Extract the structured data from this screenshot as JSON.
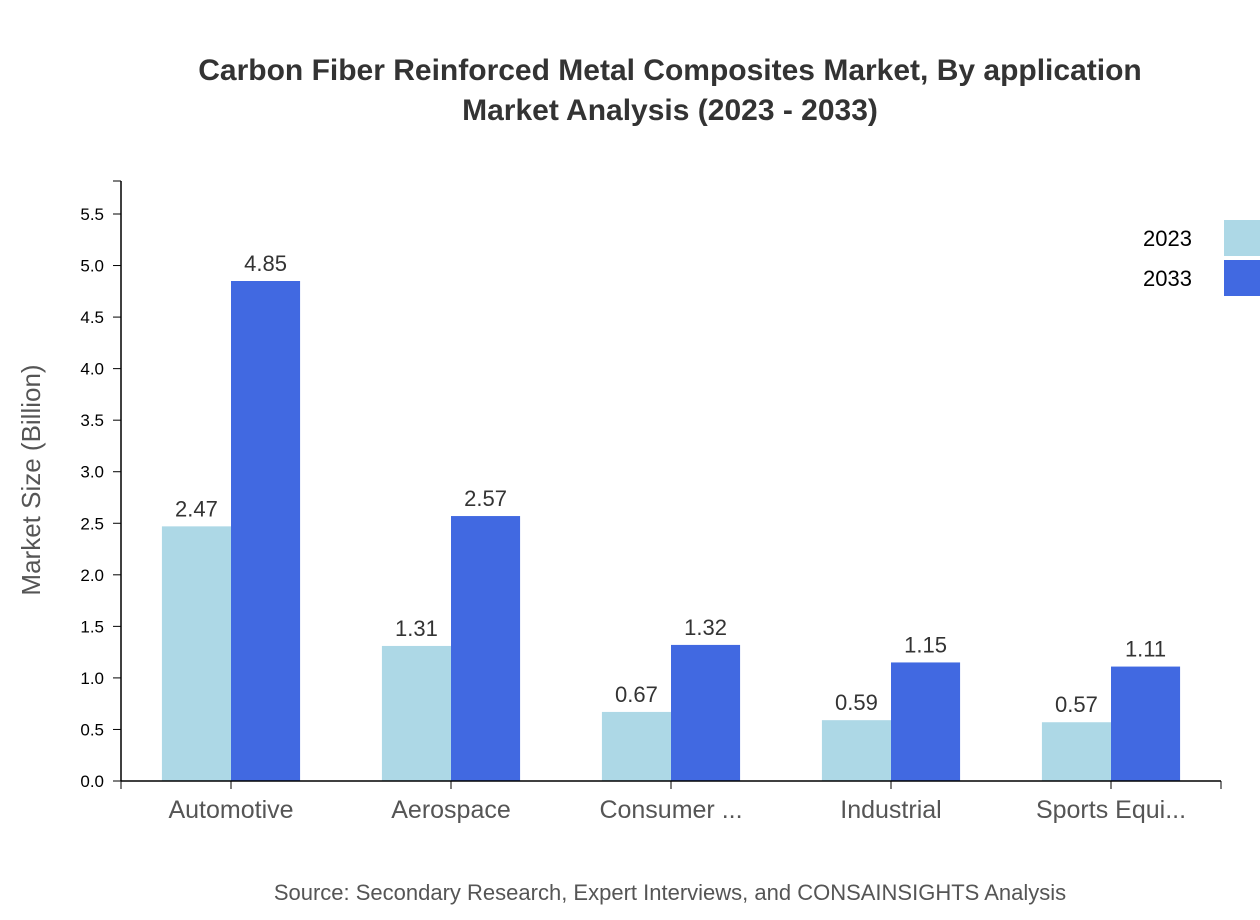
{
  "chart_data": {
    "type": "bar",
    "title": "Carbon Fiber Reinforced Metal Composites Market, By application",
    "subtitle": "Market Analysis (2023 - 2033)",
    "xlabel": "",
    "ylabel": "Market Size (Billion)",
    "ylim": [
      0,
      5.82
    ],
    "yticks": [
      "0.0",
      "0.5",
      "1.0",
      "1.5",
      "2.0",
      "2.5",
      "3.0",
      "3.5",
      "4.0",
      "4.5",
      "5.0",
      "5.5"
    ],
    "categories": [
      "Automotive",
      "Aerospace",
      "Consumer ...",
      "Industrial",
      "Sports Equi..."
    ],
    "series": [
      {
        "name": "2023",
        "color": "#add8e6",
        "values": [
          2.47,
          1.31,
          0.67,
          0.59,
          0.57
        ]
      },
      {
        "name": "2033",
        "color": "#4169e1",
        "values": [
          4.85,
          2.57,
          1.32,
          1.15,
          1.11
        ]
      }
    ],
    "legend_position": "top-right",
    "grid": false,
    "source": "Source: Secondary Research, Expert Interviews, and CONSAINSIGHTS Analysis"
  }
}
